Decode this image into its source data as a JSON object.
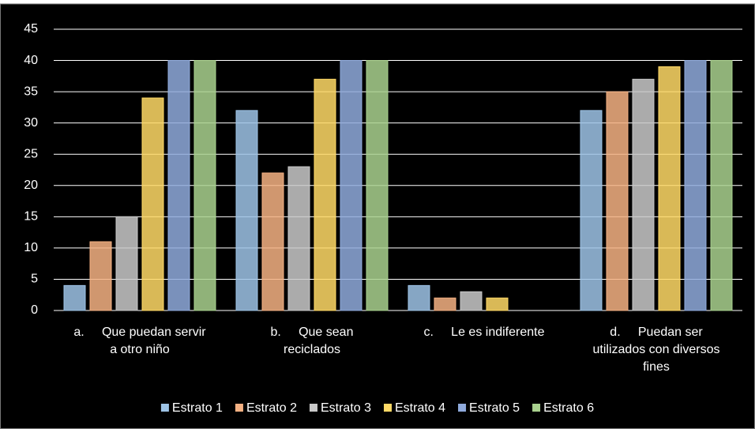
{
  "chart_data": {
    "type": "bar",
    "categories": [
      "a.     Que puedan servir\na otro niño",
      "b.     Que sean\nreciclados",
      "c.     Le es indiferente",
      "d.     Puedan ser\nutilizados con diversos\nfines"
    ],
    "series": [
      {
        "name": "Estrato 1",
        "color": "#9dc3e6",
        "values": [
          4,
          32,
          4,
          32
        ]
      },
      {
        "name": "Estrato 2",
        "color": "#f4b183",
        "values": [
          11,
          22,
          2,
          35
        ]
      },
      {
        "name": "Estrato 3",
        "color": "#c9c9c9",
        "values": [
          15,
          23,
          3,
          37
        ]
      },
      {
        "name": "Estrato 4",
        "color": "#ffd966",
        "values": [
          34,
          37,
          2,
          39
        ]
      },
      {
        "name": "Estrato 5",
        "color": "#8faadc",
        "values": [
          40,
          40,
          0,
          40
        ]
      },
      {
        "name": "Estrato 6",
        "color": "#a9d18e",
        "values": [
          40,
          40,
          0,
          40
        ]
      }
    ],
    "ylim": [
      0,
      45
    ],
    "yticks": [
      0,
      5,
      10,
      15,
      20,
      25,
      30,
      35,
      40,
      45
    ],
    "grid": true,
    "legend": "bottom"
  }
}
